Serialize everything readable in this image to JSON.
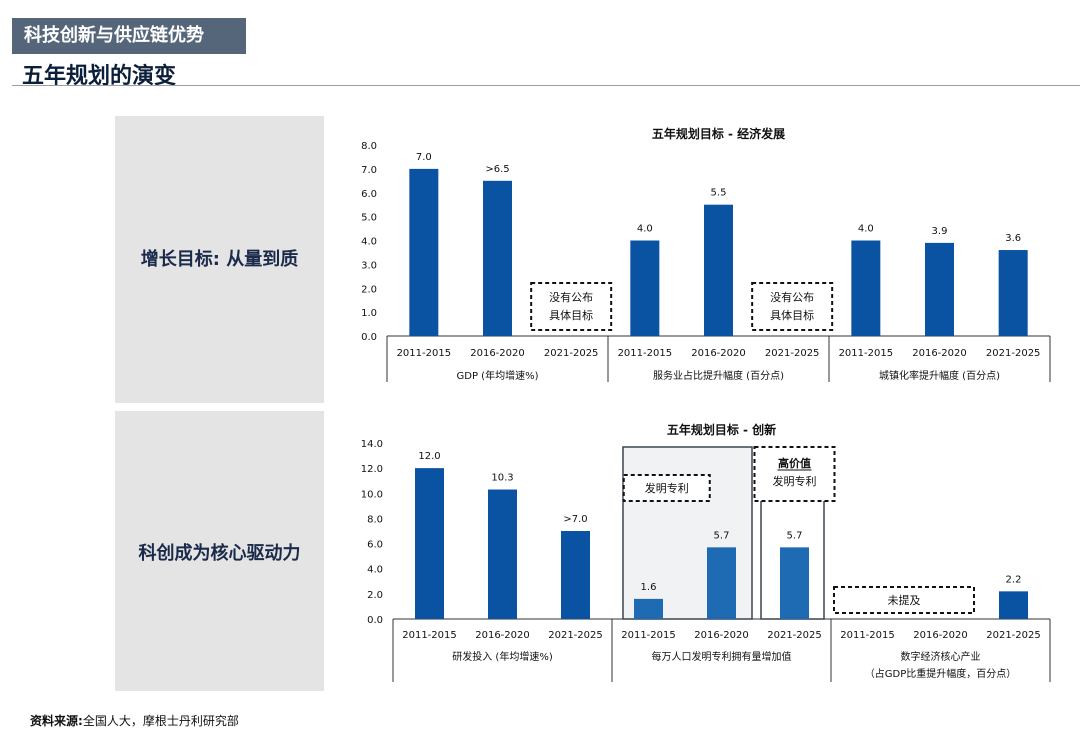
{
  "header": {
    "banner": "科技创新与供应链优势",
    "page_title": "五年规划的演变"
  },
  "panels": [
    {
      "label": "增长目标: 从量到质"
    },
    {
      "label": "科创成为核心驱动力"
    }
  ],
  "source": {
    "prefix": "资料来源:",
    "text": "全国人大，摩根士丹利研究部"
  },
  "colors": {
    "bar": "#0a53a3",
    "bar_light": "#1f6bb3",
    "banner_bg": "#56667a"
  },
  "chart_data": [
    {
      "type": "bar",
      "title": "五年规划目标 - 经济发展",
      "ylim": [
        0,
        8
      ],
      "yticks": [
        "0.0",
        "1.0",
        "2.0",
        "3.0",
        "4.0",
        "5.0",
        "6.0",
        "7.0",
        "8.0"
      ],
      "groups": [
        {
          "name": "GDP (年均增速%)",
          "categories": [
            "2011-2015",
            "2016-2020",
            "2021-2025"
          ],
          "values": [
            7.0,
            6.5,
            null
          ],
          "labels": [
            "7.0",
            ">6.5",
            ""
          ],
          "note": "没有公布具体目标"
        },
        {
          "name": "服务业占比提升幅度 (百分点)",
          "categories": [
            "2011-2015",
            "2016-2020",
            "2021-2025"
          ],
          "values": [
            4.0,
            5.5,
            null
          ],
          "labels": [
            "4.0",
            "5.5",
            ""
          ],
          "note": "没有公布具体目标"
        },
        {
          "name": "城镇化率提升幅度 (百分点)",
          "categories": [
            "2011-2015",
            "2016-2020",
            "2021-2025"
          ],
          "values": [
            4.0,
            3.9,
            3.6
          ],
          "labels": [
            "4.0",
            "3.9",
            "3.6"
          ]
        }
      ]
    },
    {
      "type": "bar",
      "title": "五年规划目标 - 创新",
      "ylim": [
        0,
        14
      ],
      "yticks": [
        "0.0",
        "2.0",
        "4.0",
        "6.0",
        "8.0",
        "10.0",
        "12.0",
        "14.0"
      ],
      "groups": [
        {
          "name": "研发投入 (年均增速%)",
          "categories": [
            "2011-2015",
            "2016-2020",
            "2021-2025"
          ],
          "values": [
            12.0,
            10.3,
            7.0
          ],
          "labels": [
            "12.0",
            "10.3",
            ">7.0"
          ]
        },
        {
          "name": "每万人口发明专利拥有量增加值",
          "categories": [
            "2011-2015",
            "2016-2020",
            "2021-2025"
          ],
          "values": [
            1.6,
            5.7,
            5.7
          ],
          "labels": [
            "1.6",
            "5.7",
            "5.7"
          ],
          "note": "发明专利",
          "note2_bold": "高价值",
          "note2_rest": "发明专利"
        },
        {
          "name": "数字经济核心产业",
          "name2": "（占GDP比重提升幅度，百分点）",
          "categories": [
            "2011-2015",
            "2016-2020",
            "2021-2025"
          ],
          "values": [
            null,
            null,
            2.2
          ],
          "labels": [
            "",
            "",
            "2.2"
          ],
          "note": "未提及"
        }
      ]
    }
  ]
}
